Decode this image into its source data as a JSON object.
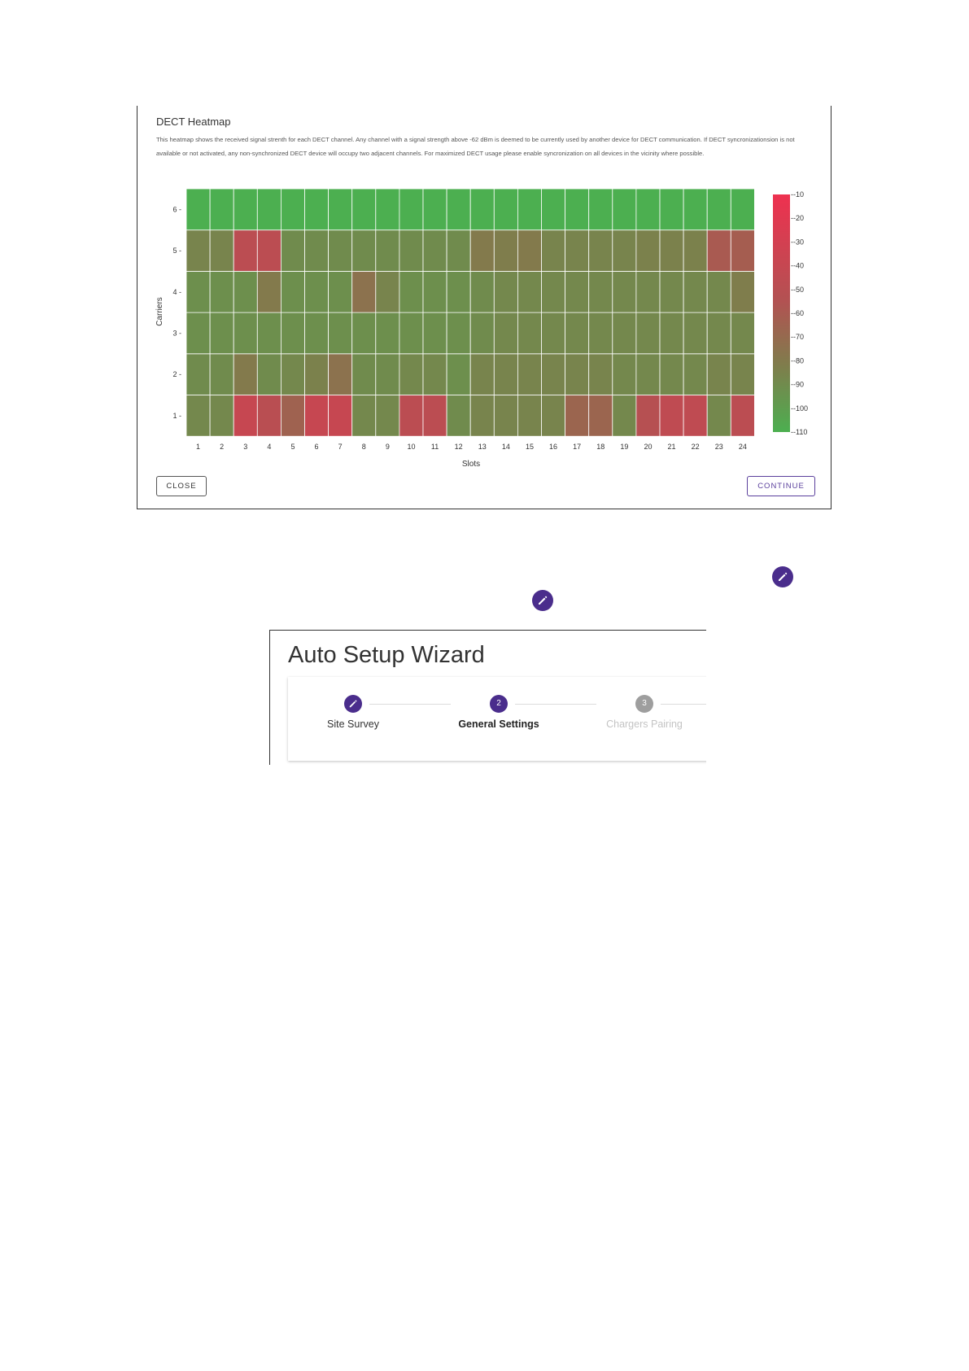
{
  "heatmap_dialog": {
    "title": "DECT Heatmap",
    "description": "This heatmap shows the received signal strenth for each DECT channel. Any channel with a signal strength above -62 dBm is deemed to be currently used by another device for DECT communication. If DECT syncronizationsion is not available or not activated, any non-synchronized DECT device will occupy two adjacent channels. For maximized DECT usage please enable syncronization on all devices in the vicinity where possible.",
    "close_label": "CLOSE",
    "continue_label": "CONTINUE"
  },
  "chart_data": {
    "type": "heatmap",
    "title": "",
    "xlabel": "Slots",
    "ylabel": "Carriers",
    "x": [
      1,
      2,
      3,
      4,
      5,
      6,
      7,
      8,
      9,
      10,
      11,
      12,
      13,
      14,
      15,
      16,
      17,
      18,
      19,
      20,
      21,
      22,
      23,
      24
    ],
    "y": [
      1,
      2,
      3,
      4,
      5,
      6
    ],
    "z_range": [
      -110,
      -10
    ],
    "colorbar_ticks": [
      -10,
      -20,
      -30,
      -40,
      -50,
      -60,
      -70,
      -80,
      -90,
      -100,
      -110
    ],
    "color_low": "#4caf50",
    "color_high": "#e8314a",
    "values": [
      [
        -88,
        -88,
        -40,
        -50,
        -65,
        -40,
        -40,
        -88,
        -88,
        -48,
        -48,
        -90,
        -86,
        -86,
        -86,
        -86,
        -67,
        -67,
        -88,
        -52,
        -45,
        -45,
        -88,
        -48
      ],
      [
        -90,
        -90,
        -80,
        -90,
        -88,
        -84,
        -75,
        -90,
        -90,
        -88,
        -88,
        -92,
        -86,
        -86,
        -86,
        -86,
        -86,
        -86,
        -88,
        -88,
        -88,
        -88,
        -86,
        -86
      ],
      [
        -92,
        -92,
        -92,
        -92,
        -92,
        -92,
        -92,
        -92,
        -92,
        -92,
        -92,
        -92,
        -90,
        -88,
        -88,
        -88,
        -88,
        -88,
        -88,
        -88,
        -88,
        -88,
        -88,
        -88
      ],
      [
        -92,
        -92,
        -92,
        -80,
        -92,
        -92,
        -92,
        -75,
        -86,
        -92,
        -92,
        -92,
        -90,
        -88,
        -88,
        -88,
        -88,
        -88,
        -88,
        -88,
        -88,
        -88,
        -88,
        -82
      ],
      [
        -86,
        -86,
        -48,
        -48,
        -90,
        -90,
        -90,
        -90,
        -90,
        -90,
        -90,
        -90,
        -80,
        -82,
        -80,
        -86,
        -86,
        -86,
        -86,
        -84,
        -84,
        -84,
        -60,
        -62
      ],
      [
        -110,
        -110,
        -110,
        -110,
        -110,
        -110,
        -110,
        -110,
        -110,
        -110,
        -110,
        -110,
        -110,
        -110,
        -110,
        -110,
        -110,
        -110,
        -110,
        -110,
        -110,
        -110,
        -110,
        -110
      ]
    ]
  },
  "wizard": {
    "title": "Auto Setup Wizard",
    "steps": [
      {
        "label": "Site Survey",
        "number": "",
        "state": "edit"
      },
      {
        "label": "General Settings",
        "number": "2",
        "state": "active"
      },
      {
        "label": "Chargers Pairing",
        "number": "3",
        "state": "inactive"
      }
    ],
    "accent": "#4a2d8c",
    "inactive_color": "#9e9e9e"
  }
}
